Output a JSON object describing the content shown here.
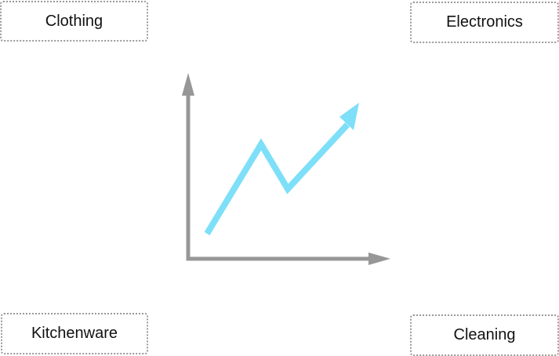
{
  "categories": {
    "top_left": "Clothing",
    "top_right": "Electronics",
    "bottom_left": "Kitchenware",
    "bottom_right": "Cleaning"
  },
  "icon": {
    "name": "trend-up-chart-icon",
    "axis_color": "#979797",
    "trend_color": "#7ddff8"
  }
}
